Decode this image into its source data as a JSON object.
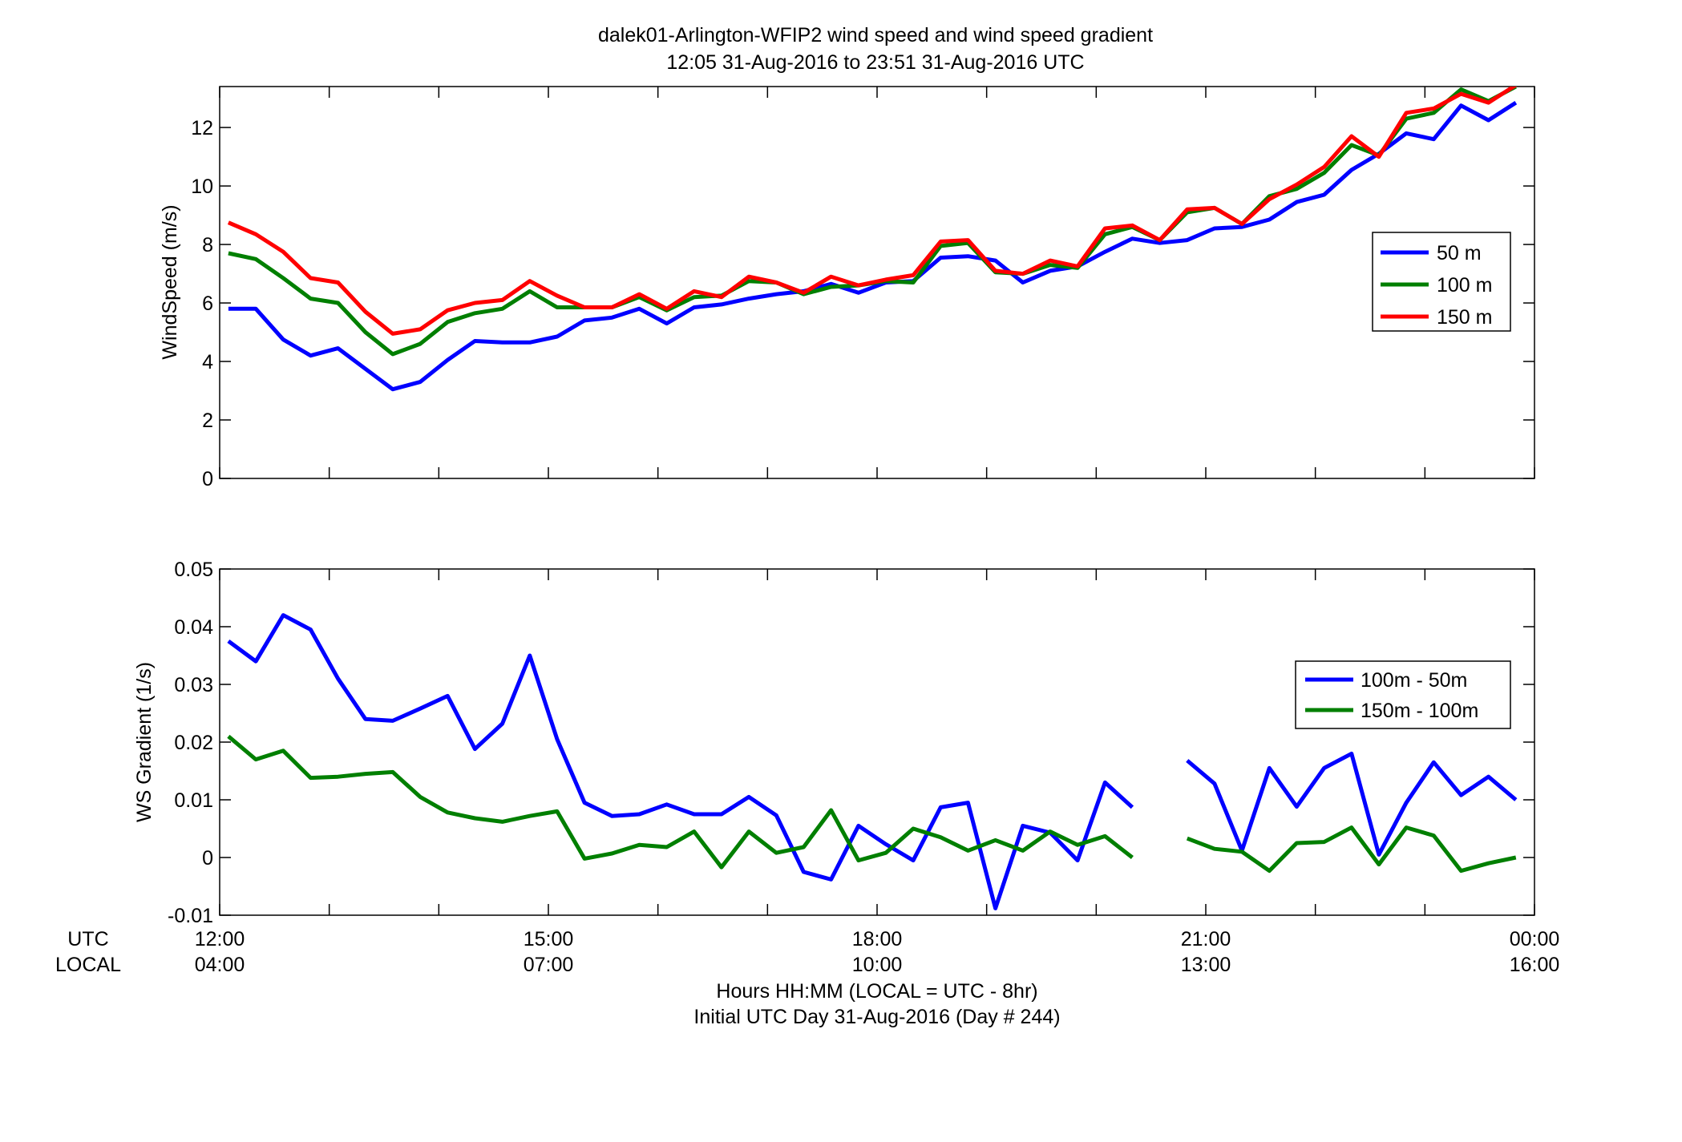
{
  "chart_data": [
    {
      "type": "line",
      "title_line1": "dalek01-Arlington-WFIP2  wind speed and wind speed gradient",
      "title_line2": "12:05 31-Aug-2016 to 23:51 31-Aug-2016  UTC",
      "ylabel": "WindSpeed (m/s)",
      "xlim_hours": [
        12,
        24
      ],
      "ylim": [
        0,
        13.4
      ],
      "yticks": [
        "0",
        "2",
        "4",
        "6",
        "8",
        "10",
        "12"
      ],
      "legend_position": "right",
      "grid": false,
      "x": [
        12.08,
        12.33,
        12.58,
        12.83,
        13.08,
        13.33,
        13.58,
        13.83,
        14.08,
        14.33,
        14.58,
        14.83,
        15.08,
        15.33,
        15.58,
        15.83,
        16.08,
        16.33,
        16.58,
        16.83,
        17.08,
        17.33,
        17.58,
        17.83,
        18.08,
        18.33,
        18.58,
        18.83,
        19.08,
        19.33,
        19.58,
        19.83,
        20.08,
        20.33,
        20.58,
        20.83,
        21.08,
        21.33,
        21.58,
        21.83,
        22.08,
        22.33,
        22.58,
        22.83,
        23.08,
        23.33,
        23.58,
        23.83
      ],
      "series": [
        {
          "name": "50 m",
          "color": "#0000ff",
          "values": [
            5.8,
            5.8,
            4.75,
            4.2,
            4.45,
            3.75,
            3.05,
            3.3,
            4.05,
            4.7,
            4.65,
            4.65,
            4.85,
            5.4,
            5.5,
            5.8,
            5.3,
            5.85,
            5.95,
            6.15,
            6.3,
            6.4,
            6.65,
            6.35,
            6.7,
            6.75,
            7.55,
            7.6,
            7.45,
            6.7,
            7.1,
            7.25,
            7.75,
            8.2,
            8.05,
            8.15,
            8.55,
            8.6,
            8.85,
            9.45,
            9.7,
            10.55,
            11.1,
            11.8,
            11.6,
            12.75,
            12.25,
            12.85
          ]
        },
        {
          "name": "100 m",
          "color": "#007f00",
          "values": [
            7.7,
            7.5,
            6.85,
            6.15,
            6.0,
            5.0,
            4.25,
            4.6,
            5.35,
            5.65,
            5.8,
            6.4,
            5.85,
            5.85,
            5.85,
            6.2,
            5.75,
            6.2,
            6.25,
            6.75,
            6.7,
            6.3,
            6.55,
            6.6,
            6.75,
            6.7,
            7.95,
            8.05,
            7.05,
            7.0,
            7.3,
            7.2,
            8.35,
            8.6,
            8.15,
            9.1,
            9.25,
            8.7,
            9.65,
            9.9,
            10.45,
            11.4,
            11.05,
            12.3,
            12.5,
            13.3,
            12.9,
            13.4
          ]
        },
        {
          "name": "150 m",
          "color": "#ff0000",
          "values": [
            8.75,
            8.35,
            7.75,
            6.85,
            6.7,
            5.7,
            4.95,
            5.1,
            5.75,
            6.0,
            6.1,
            6.75,
            6.25,
            5.85,
            5.85,
            6.3,
            5.8,
            6.4,
            6.2,
            6.9,
            6.7,
            6.35,
            6.9,
            6.6,
            6.8,
            6.95,
            8.1,
            8.15,
            7.1,
            7.0,
            7.45,
            7.25,
            8.55,
            8.65,
            8.15,
            9.2,
            9.25,
            8.7,
            9.55,
            10.05,
            10.65,
            11.7,
            11.0,
            12.5,
            12.65,
            13.15,
            12.85,
            13.45
          ]
        }
      ]
    },
    {
      "type": "line",
      "ylabel": "WS Gradient (1/s)",
      "xlabel_line1": "Hours HH:MM  (LOCAL = UTC - 8hr)",
      "xlabel_line2": "Initial UTC Day 31-Aug-2016 (Day # 244)",
      "row_label_utc": "UTC",
      "row_label_local": "LOCAL",
      "xlim_hours": [
        12,
        24
      ],
      "ylim": [
        -0.01,
        0.05
      ],
      "yticks": [
        "-0.01",
        "0",
        "0.01",
        "0.02",
        "0.03",
        "0.04",
        "0.05"
      ],
      "xticks_utc": [
        "12:00",
        "15:00",
        "18:00",
        "21:00",
        "00:00"
      ],
      "xticks_local": [
        "04:00",
        "07:00",
        "10:00",
        "13:00",
        "16:00"
      ],
      "legend_position": "right",
      "grid": false,
      "x": [
        12.08,
        12.33,
        12.58,
        12.83,
        13.08,
        13.33,
        13.58,
        13.83,
        14.08,
        14.33,
        14.58,
        14.83,
        15.08,
        15.33,
        15.58,
        15.83,
        16.08,
        16.33,
        16.58,
        16.83,
        17.08,
        17.33,
        17.58,
        17.83,
        18.08,
        18.33,
        18.58,
        18.83,
        19.08,
        19.33,
        19.58,
        19.83,
        20.08,
        20.33,
        20.58,
        20.83,
        21.08,
        21.33,
        21.58,
        21.83,
        22.08,
        22.33,
        22.58,
        22.83,
        23.08,
        23.33,
        23.58,
        23.83
      ],
      "series": [
        {
          "name": "100m - 50m",
          "color": "#0000ff",
          "values": [
            0.0375,
            0.034,
            0.042,
            0.0395,
            0.031,
            0.024,
            0.0237,
            0.0258,
            0.028,
            0.0188,
            0.0232,
            0.035,
            0.0205,
            0.0095,
            0.0072,
            0.0075,
            0.0092,
            0.0075,
            0.0075,
            0.0105,
            0.0073,
            -0.0025,
            -0.0038,
            0.0055,
            0.0023,
            -0.0005,
            0.0087,
            0.0095,
            -0.0088,
            0.0055,
            0.0043,
            -0.0005,
            0.013,
            0.0087,
            null,
            0.0168,
            0.0128,
            0.0012,
            0.0155,
            0.0088,
            0.0155,
            0.018,
            0.0005,
            0.0095,
            0.0165,
            0.0108,
            0.014,
            0.01
          ]
        },
        {
          "name": "150m - 100m",
          "color": "#007f00",
          "values": [
            0.021,
            0.017,
            0.0185,
            0.0138,
            0.014,
            0.0145,
            0.0148,
            0.0105,
            0.0078,
            0.0068,
            0.0062,
            0.0072,
            0.008,
            -0.0002,
            0.0007,
            0.0022,
            0.0018,
            0.0045,
            -0.0017,
            0.0045,
            0.0008,
            0.0018,
            0.0082,
            -0.0005,
            0.0008,
            0.005,
            0.0035,
            0.0012,
            0.003,
            0.0012,
            0.0045,
            0.0022,
            0.0037,
            0.0,
            null,
            0.0033,
            0.0015,
            0.001,
            -0.0023,
            0.0025,
            0.0027,
            0.0052,
            -0.0012,
            0.0052,
            0.0038,
            -0.0023,
            -0.001,
            0.0
          ]
        }
      ]
    }
  ]
}
